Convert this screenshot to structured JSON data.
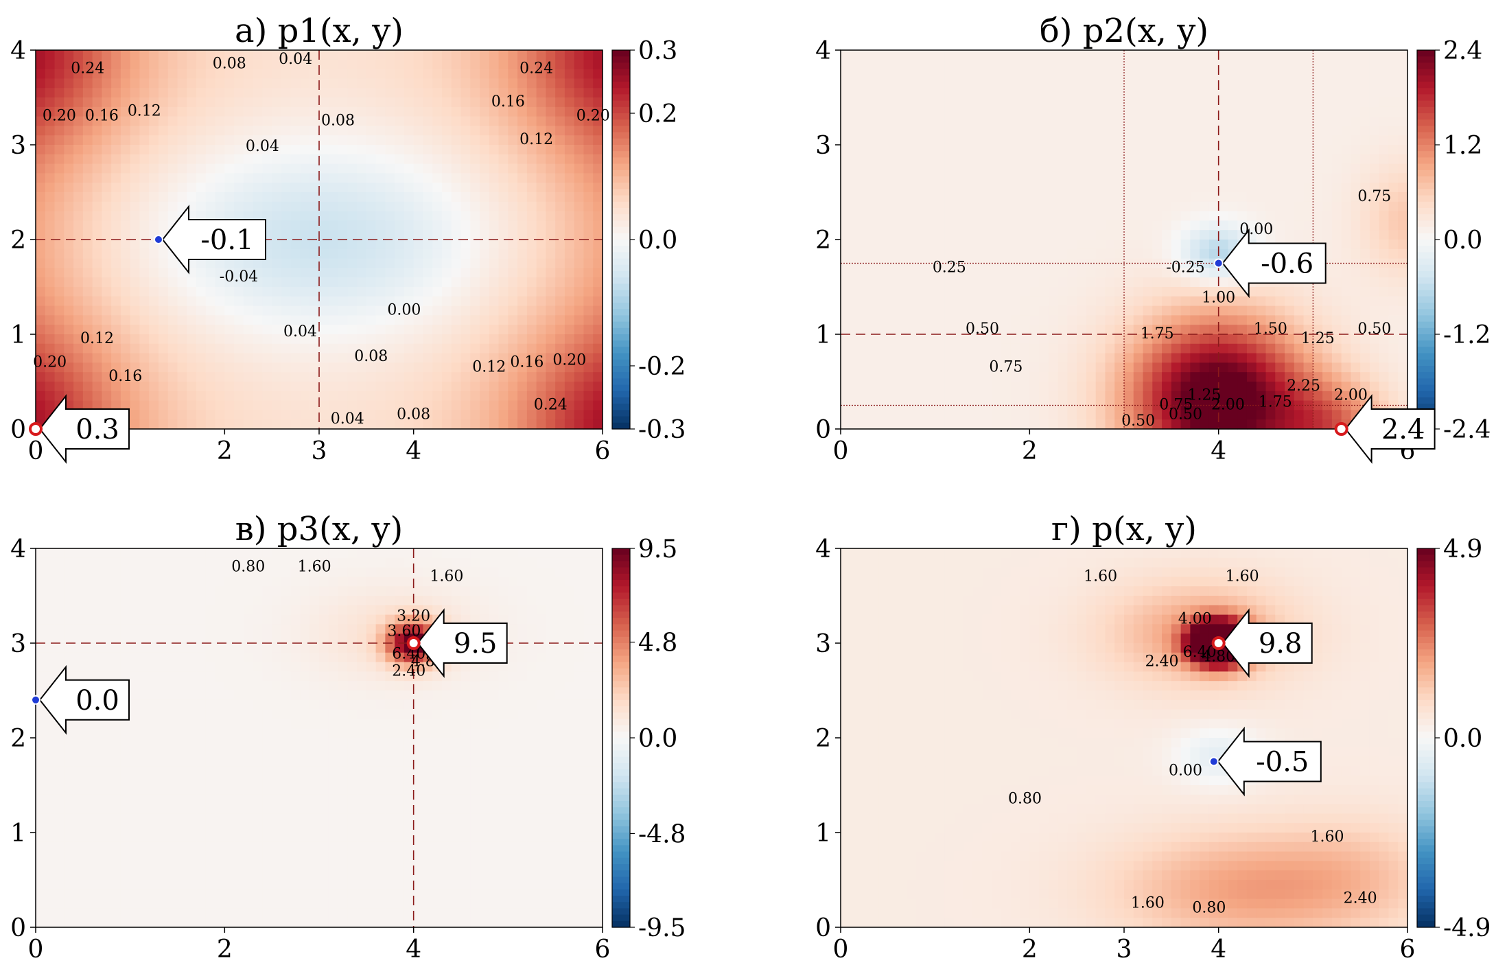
{
  "colors": {
    "accent": "#a50026",
    "min_marker": "#1f3bd6",
    "max_marker": "#d7191c",
    "guide": "#8b1a1a"
  },
  "chart_data": [
    {
      "type": "heatmap",
      "title": "а) p1(x, y)",
      "xlim": [
        0,
        6
      ],
      "ylim": [
        0,
        4
      ],
      "xticks": [
        "0",
        "2",
        "3",
        "4",
        "6"
      ],
      "xtick_values": [
        0,
        2,
        3,
        4,
        6
      ],
      "yticks": [
        "0",
        "1",
        "2",
        "3",
        "4"
      ],
      "ytick_values": [
        0,
        1,
        2,
        3,
        4
      ],
      "colorbar": {
        "ticks": [
          "0.3",
          "0.2",
          "0.0",
          "-0.2",
          "-0.3"
        ],
        "values": [
          0.3,
          0.2,
          0.0,
          -0.2,
          -0.3
        ],
        "min": -0.3,
        "max": 0.3
      },
      "guides": {
        "dashed_x": [
          3
        ],
        "dashed_y": [
          2
        ],
        "dotted_x": [],
        "dotted_y": []
      },
      "contour_labels": [
        {
          "text": "0.24",
          "x": 0.55,
          "y": 3.8
        },
        {
          "text": "0.08",
          "x": 2.05,
          "y": 3.85
        },
        {
          "text": "0.04",
          "x": 2.75,
          "y": 3.9
        },
        {
          "text": "0.24",
          "x": 5.3,
          "y": 3.8
        },
        {
          "text": "0.20",
          "x": 0.25,
          "y": 3.3
        },
        {
          "text": "0.16",
          "x": 0.7,
          "y": 3.3
        },
        {
          "text": "0.12",
          "x": 1.15,
          "y": 3.35
        },
        {
          "text": "0.08",
          "x": 3.2,
          "y": 3.25
        },
        {
          "text": "0.04",
          "x": 2.4,
          "y": 2.98
        },
        {
          "text": "0.16",
          "x": 5.0,
          "y": 3.45
        },
        {
          "text": "0.12",
          "x": 5.3,
          "y": 3.05
        },
        {
          "text": "0.20",
          "x": 5.9,
          "y": 3.3
        },
        {
          "text": "-0.04",
          "x": 2.15,
          "y": 1.6
        },
        {
          "text": "0.00",
          "x": 3.9,
          "y": 1.25
        },
        {
          "text": "0.04",
          "x": 2.8,
          "y": 1.02
        },
        {
          "text": "0.08",
          "x": 3.55,
          "y": 0.76
        },
        {
          "text": "0.12",
          "x": 0.65,
          "y": 0.95
        },
        {
          "text": "0.16",
          "x": 0.95,
          "y": 0.55
        },
        {
          "text": "0.20",
          "x": 0.15,
          "y": 0.7
        },
        {
          "text": "0.12",
          "x": 4.8,
          "y": 0.65
        },
        {
          "text": "0.16",
          "x": 5.2,
          "y": 0.7
        },
        {
          "text": "0.20",
          "x": 5.65,
          "y": 0.72
        },
        {
          "text": "0.24",
          "x": 5.45,
          "y": 0.25
        },
        {
          "text": "0.04",
          "x": 3.3,
          "y": 0.1
        },
        {
          "text": "0.08",
          "x": 4.0,
          "y": 0.15
        }
      ],
      "annotations": [
        {
          "kind": "min",
          "x": 1.3,
          "y": 2.0,
          "text": "-0.1"
        },
        {
          "kind": "max",
          "x": 0.0,
          "y": 0.0,
          "text": "0.3"
        }
      ]
    },
    {
      "type": "heatmap",
      "title": "б) p2(x, y)",
      "xlim": [
        0,
        6
      ],
      "ylim": [
        0,
        4
      ],
      "xticks": [
        "0",
        "2",
        "4",
        "6"
      ],
      "xtick_values": [
        0,
        2,
        4,
        6
      ],
      "yticks": [
        "0",
        "1",
        "2",
        "3",
        "4"
      ],
      "ytick_values": [
        0,
        1,
        2,
        3,
        4
      ],
      "colorbar": {
        "ticks": [
          "2.4",
          "1.2",
          "0.0",
          "-1.2",
          "-2.4"
        ],
        "values": [
          2.4,
          1.2,
          0.0,
          -1.2,
          -2.4
        ],
        "min": -2.4,
        "max": 2.4
      },
      "guides": {
        "dashed_x": [
          4
        ],
        "dashed_y": [
          1
        ],
        "dotted_x": [
          3,
          5
        ],
        "dotted_y": [
          1.75,
          0.25
        ]
      },
      "contour_labels": [
        {
          "text": "0.25",
          "x": 1.15,
          "y": 1.7
        },
        {
          "text": "0.50",
          "x": 1.5,
          "y": 1.05
        },
        {
          "text": "0.75",
          "x": 1.75,
          "y": 0.65
        },
        {
          "text": "0.00",
          "x": 4.4,
          "y": 2.1
        },
        {
          "text": "-0.25",
          "x": 3.65,
          "y": 1.7
        },
        {
          "text": "1.00",
          "x": 4.0,
          "y": 1.38
        },
        {
          "text": "1.75",
          "x": 3.35,
          "y": 1.0
        },
        {
          "text": "1.50",
          "x": 4.55,
          "y": 1.05
        },
        {
          "text": "1.25",
          "x": 5.05,
          "y": 0.95
        },
        {
          "text": "0.50",
          "x": 5.65,
          "y": 1.05
        },
        {
          "text": "0.75",
          "x": 5.65,
          "y": 2.45
        },
        {
          "text": "2.25",
          "x": 4.9,
          "y": 0.45
        },
        {
          "text": "2.00",
          "x": 4.1,
          "y": 0.25
        },
        {
          "text": "1.75",
          "x": 4.6,
          "y": 0.28
        },
        {
          "text": "1.25",
          "x": 3.85,
          "y": 0.35
        },
        {
          "text": "0.50",
          "x": 3.65,
          "y": 0.15
        },
        {
          "text": "0.75",
          "x": 3.55,
          "y": 0.25
        },
        {
          "text": "0.50",
          "x": 3.15,
          "y": 0.08
        },
        {
          "text": "2.00",
          "x": 5.4,
          "y": 0.35
        }
      ],
      "annotations": [
        {
          "kind": "min",
          "x": 4.0,
          "y": 1.75,
          "text": "-0.6"
        },
        {
          "kind": "max",
          "x": 5.3,
          "y": 0.0,
          "text": "2.4"
        }
      ]
    },
    {
      "type": "heatmap",
      "title": "в) p3(x, y)",
      "xlim": [
        0,
        6
      ],
      "ylim": [
        0,
        4
      ],
      "xticks": [
        "0",
        "2",
        "4",
        "6"
      ],
      "xtick_values": [
        0,
        2,
        4,
        6
      ],
      "yticks": [
        "0",
        "1",
        "2",
        "3",
        "4"
      ],
      "ytick_values": [
        0,
        1,
        2,
        3,
        4
      ],
      "colorbar": {
        "ticks": [
          "9.5",
          "4.8",
          "0.0",
          "-4.8",
          "-9.5"
        ],
        "values": [
          9.5,
          4.8,
          0.0,
          -4.8,
          -9.5
        ],
        "min": -9.5,
        "max": 9.5
      },
      "guides": {
        "dashed_x": [
          4
        ],
        "dashed_y": [
          3
        ],
        "dotted_x": [],
        "dotted_y": []
      },
      "contour_labels": [
        {
          "text": "0.80",
          "x": 2.25,
          "y": 3.8
        },
        {
          "text": "1.60",
          "x": 2.95,
          "y": 3.8
        },
        {
          "text": "1.60",
          "x": 4.35,
          "y": 3.7
        },
        {
          "text": "3.20",
          "x": 4.0,
          "y": 3.28
        },
        {
          "text": "3.60",
          "x": 3.9,
          "y": 3.12
        },
        {
          "text": "6.40",
          "x": 3.95,
          "y": 2.88
        },
        {
          "text": "4.80",
          "x": 4.15,
          "y": 2.8
        },
        {
          "text": "2.40",
          "x": 3.95,
          "y": 2.7
        }
      ],
      "annotations": [
        {
          "kind": "max",
          "x": 4.0,
          "y": 3.0,
          "text": "9.5"
        },
        {
          "kind": "min",
          "x": 0.0,
          "y": 2.4,
          "text": "0.0"
        }
      ]
    },
    {
      "type": "heatmap",
      "title": "г) p(x, y)",
      "xlim": [
        0,
        6
      ],
      "ylim": [
        0,
        4
      ],
      "xticks": [
        "0",
        "2",
        "3",
        "4",
        "6"
      ],
      "xtick_values": [
        0,
        2,
        3,
        4,
        6
      ],
      "yticks": [
        "0",
        "1",
        "2",
        "3",
        "4"
      ],
      "ytick_values": [
        0,
        1,
        2,
        3,
        4
      ],
      "colorbar": {
        "ticks": [
          "4.9",
          "0.0",
          "-4.9"
        ],
        "values": [
          4.9,
          0.0,
          -4.9
        ],
        "min": -4.9,
        "max": 4.9
      },
      "guides": {
        "dashed_x": [],
        "dashed_y": [],
        "dotted_x": [],
        "dotted_y": []
      },
      "contour_labels": [
        {
          "text": "1.60",
          "x": 2.75,
          "y": 3.7
        },
        {
          "text": "1.60",
          "x": 4.25,
          "y": 3.7
        },
        {
          "text": "4.00",
          "x": 3.75,
          "y": 3.25
        },
        {
          "text": "2.40",
          "x": 3.4,
          "y": 2.8
        },
        {
          "text": "6.40",
          "x": 3.8,
          "y": 2.9
        },
        {
          "text": "4.80",
          "x": 4.0,
          "y": 2.85
        },
        {
          "text": "0.00",
          "x": 3.65,
          "y": 1.65
        },
        {
          "text": "0.80",
          "x": 1.95,
          "y": 1.35
        },
        {
          "text": "1.60",
          "x": 5.15,
          "y": 0.95
        },
        {
          "text": "2.40",
          "x": 5.5,
          "y": 0.3
        },
        {
          "text": "1.60",
          "x": 3.25,
          "y": 0.25
        },
        {
          "text": "0.80",
          "x": 3.9,
          "y": 0.2
        }
      ],
      "annotations": [
        {
          "kind": "max",
          "x": 4.0,
          "y": 3.0,
          "text": "9.8"
        },
        {
          "kind": "min",
          "x": 3.95,
          "y": 1.75,
          "text": "-0.5"
        }
      ]
    }
  ]
}
